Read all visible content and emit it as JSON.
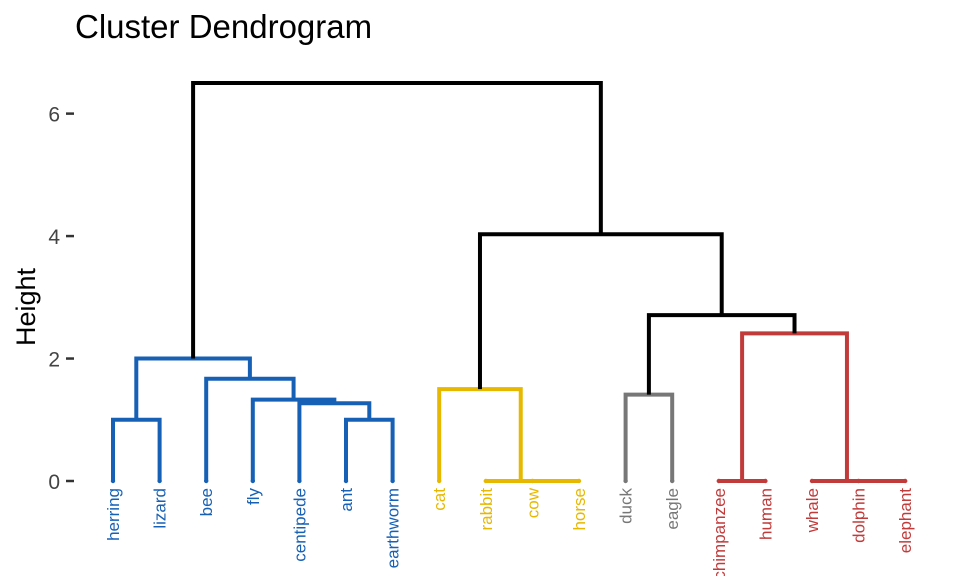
{
  "chart_data": {
    "type": "dendrogram",
    "title": "Cluster Dendrogram",
    "xlabel": "",
    "ylabel": "Height",
    "ylim": [
      0,
      6.5
    ],
    "y_ticks": [
      0,
      2,
      4,
      6
    ],
    "grid": false,
    "leaves": [
      {
        "label": "herring",
        "group": 1
      },
      {
        "label": "lizard",
        "group": 1
      },
      {
        "label": "bee",
        "group": 1
      },
      {
        "label": "fly",
        "group": 1
      },
      {
        "label": "centipede",
        "group": 1
      },
      {
        "label": "ant",
        "group": 1
      },
      {
        "label": "earthworm",
        "group": 1
      },
      {
        "label": "cat",
        "group": 2
      },
      {
        "label": "rabbit",
        "group": 2
      },
      {
        "label": "cow",
        "group": 2
      },
      {
        "label": "horse",
        "group": 2
      },
      {
        "label": "duck",
        "group": 3
      },
      {
        "label": "eagle",
        "group": 3
      },
      {
        "label": "chimpanzee",
        "group": 4
      },
      {
        "label": "human",
        "group": 4
      },
      {
        "label": "whale",
        "group": 4
      },
      {
        "label": "dolphin",
        "group": 4
      },
      {
        "label": "elephant",
        "group": 4
      }
    ],
    "group_colors": {
      "1": "#1660b6",
      "2": "#e7b800",
      "3": "#777777",
      "4": "#c23b3b",
      "root": "#000000"
    },
    "merges": [
      {
        "id": "m1",
        "children": [
          "herring",
          "lizard"
        ],
        "height": 1.0,
        "group": 1
      },
      {
        "id": "m2",
        "children": [
          "ant",
          "earthworm"
        ],
        "height": 1.0,
        "group": 1
      },
      {
        "id": "m3",
        "children": [
          "centipede",
          "m2"
        ],
        "height": 1.27,
        "group": 1
      },
      {
        "id": "m4",
        "children": [
          "fly",
          "m3"
        ],
        "height": 1.33,
        "group": 1
      },
      {
        "id": "m5",
        "children": [
          "bee",
          "m4"
        ],
        "height": 1.67,
        "group": 1
      },
      {
        "id": "m6",
        "children": [
          "m1",
          "m5"
        ],
        "height": 2.0,
        "group": 1
      },
      {
        "id": "m7",
        "children": [
          "cow",
          "horse"
        ],
        "height": 0.0,
        "group": 2
      },
      {
        "id": "m8",
        "children": [
          "rabbit",
          "m7"
        ],
        "height": 0.0,
        "group": 2
      },
      {
        "id": "m9",
        "children": [
          "cat",
          "m8"
        ],
        "height": 1.5,
        "group": 2
      },
      {
        "id": "m10",
        "children": [
          "duck",
          "eagle"
        ],
        "height": 1.41,
        "group": 3
      },
      {
        "id": "m11",
        "children": [
          "chimpanzee",
          "human"
        ],
        "height": 0.0,
        "group": 4
      },
      {
        "id": "m12",
        "children": [
          "dolphin",
          "elephant"
        ],
        "height": 0.0,
        "group": 4
      },
      {
        "id": "m13",
        "children": [
          "whale",
          "m12"
        ],
        "height": 0.0,
        "group": 4
      },
      {
        "id": "m14",
        "children": [
          "m11",
          "m13"
        ],
        "height": 2.41,
        "group": 4
      },
      {
        "id": "m15",
        "children": [
          "m10",
          "m14"
        ],
        "height": 2.71,
        "group": "root"
      },
      {
        "id": "m16",
        "children": [
          "m9",
          "m15"
        ],
        "height": 4.03,
        "group": "root"
      },
      {
        "id": "m17",
        "children": [
          "m6",
          "m16"
        ],
        "height": 6.5,
        "group": "root"
      }
    ]
  }
}
